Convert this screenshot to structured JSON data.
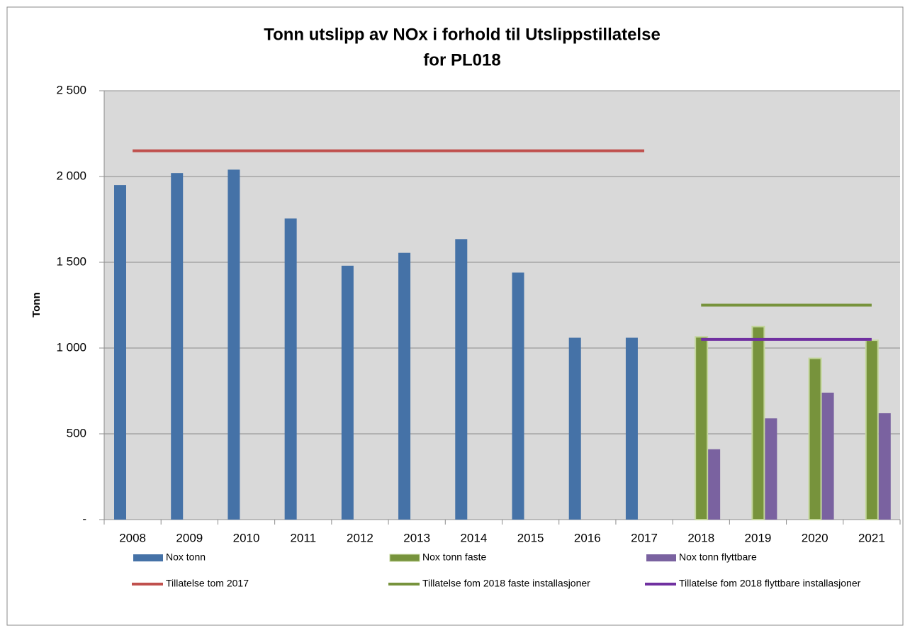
{
  "chart_data": {
    "type": "bar",
    "title": [
      "Tonn utslipp av NOx i forhold til Utslippstillatelse",
      "for PL018"
    ],
    "ylabel": "Tonn",
    "categories": [
      "2008",
      "2009",
      "2010",
      "2011",
      "2012",
      "2013",
      "2014",
      "2015",
      "2016",
      "2017",
      "2018",
      "2019",
      "2020",
      "2021"
    ],
    "series": [
      {
        "name": "Nox tonn",
        "type": "bar",
        "color": "#4572a7",
        "values": [
          1950,
          2020,
          2040,
          1755,
          1480,
          1555,
          1635,
          1440,
          1060,
          1060,
          null,
          null,
          null,
          null
        ]
      },
      {
        "name": "Nox tonn faste",
        "type": "bar",
        "color": "#77933c",
        "edge": "#c3d69b",
        "values": [
          null,
          null,
          null,
          null,
          null,
          null,
          null,
          null,
          null,
          null,
          1065,
          1125,
          940,
          1045
        ]
      },
      {
        "name": "Nox tonn flyttbare",
        "type": "bar",
        "color": "#7a62a0",
        "values": [
          null,
          null,
          null,
          null,
          null,
          null,
          null,
          null,
          null,
          null,
          410,
          590,
          740,
          620
        ]
      },
      {
        "name": "Tillatelse tom 2017",
        "type": "line",
        "color": "#c0504d",
        "values": [
          2150,
          2150,
          2150,
          2150,
          2150,
          2150,
          2150,
          2150,
          2150,
          2150,
          null,
          null,
          null,
          null
        ]
      },
      {
        "name": "Tillatelse fom 2018 faste installasjoner",
        "type": "line",
        "color": "#77933c",
        "values": [
          null,
          null,
          null,
          null,
          null,
          null,
          null,
          null,
          null,
          null,
          1250,
          1250,
          1250,
          1250
        ]
      },
      {
        "name": "Tillatelse fom 2018 flyttbare installasjoner",
        "type": "line",
        "color": "#7030a0",
        "values": [
          null,
          null,
          null,
          null,
          null,
          null,
          null,
          null,
          null,
          null,
          1050,
          1050,
          1050,
          1050
        ]
      }
    ],
    "ylim": [
      0,
      2500
    ],
    "yticks": [
      {
        "value": 0,
        "label": "-"
      },
      500,
      {
        "value": 1000,
        "label": "1 000"
      },
      {
        "value": 1500,
        "label": "1 500"
      },
      {
        "value": 2000,
        "label": "2 000"
      },
      {
        "value": 2500,
        "label": "2 500"
      }
    ],
    "grid": true
  }
}
